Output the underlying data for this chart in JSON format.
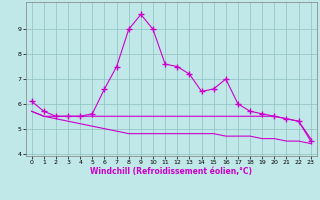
{
  "title": "",
  "xlabel": "Windchill (Refroidissement éolien,°C)",
  "bg_color": "#c0e8e8",
  "grid_color": "#90c0c0",
  "line_color": "#cc00cc",
  "line1_x": [
    0,
    1,
    2,
    3,
    4,
    5,
    6,
    7,
    8,
    9,
    10,
    11,
    12,
    13,
    14,
    15,
    16,
    17,
    18,
    19,
    20,
    21,
    22,
    23
  ],
  "line1_y": [
    6.1,
    5.7,
    5.5,
    5.5,
    5.5,
    5.6,
    6.6,
    7.5,
    9.0,
    9.6,
    9.0,
    7.6,
    7.5,
    7.2,
    6.5,
    6.6,
    7.0,
    6.0,
    5.7,
    5.6,
    5.5,
    5.4,
    5.3,
    4.5
  ],
  "line2_x": [
    0,
    1,
    2,
    3,
    4,
    5,
    6,
    7,
    8,
    9,
    10,
    11,
    12,
    13,
    14,
    15,
    16,
    17,
    18,
    19,
    20,
    21,
    22,
    23
  ],
  "line2_y": [
    5.7,
    5.5,
    5.5,
    5.5,
    5.5,
    5.5,
    5.5,
    5.5,
    5.5,
    5.5,
    5.5,
    5.5,
    5.5,
    5.5,
    5.5,
    5.5,
    5.5,
    5.5,
    5.5,
    5.5,
    5.5,
    5.4,
    5.3,
    4.6
  ],
  "line3_x": [
    0,
    1,
    2,
    3,
    4,
    5,
    6,
    7,
    8,
    9,
    10,
    11,
    12,
    13,
    14,
    15,
    16,
    17,
    18,
    19,
    20,
    21,
    22,
    23
  ],
  "line3_y": [
    5.7,
    5.5,
    5.4,
    5.3,
    5.2,
    5.1,
    5.0,
    4.9,
    4.8,
    4.8,
    4.8,
    4.8,
    4.8,
    4.8,
    4.8,
    4.8,
    4.7,
    4.7,
    4.7,
    4.6,
    4.6,
    4.5,
    4.5,
    4.4
  ],
  "x": [
    0,
    1,
    2,
    3,
    4,
    5,
    6,
    7,
    8,
    9,
    10,
    11,
    12,
    13,
    14,
    15,
    16,
    17,
    18,
    19,
    20,
    21,
    22,
    23
  ],
  "xlim": [
    -0.5,
    23.5
  ],
  "ylim": [
    3.9,
    10.1
  ],
  "yticks": [
    4,
    5,
    6,
    7,
    8,
    9
  ],
  "marker": "+",
  "markersize": 4,
  "markeredgewidth": 1.0,
  "linewidth": 0.8,
  "axis_fontsize": 5.5,
  "tick_fontsize": 4.5,
  "xlabel_color": "#cc00cc",
  "xlabel_fontweight": "bold"
}
